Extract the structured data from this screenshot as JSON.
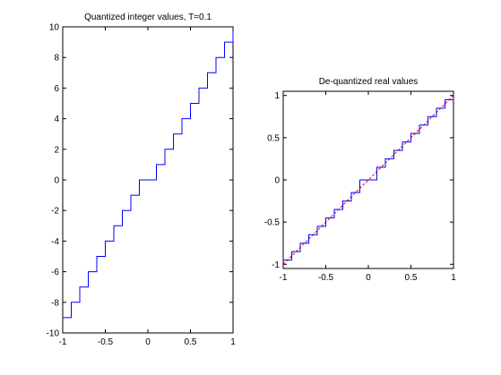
{
  "chart_data": [
    {
      "type": "line",
      "title": "Quantized integer values, T=0.1",
      "xlabel": "",
      "ylabel": "",
      "xlim": [
        -1,
        1
      ],
      "ylim": [
        -10,
        10
      ],
      "grid": false,
      "x_ticks": [
        -1,
        -0.5,
        0,
        0.5,
        1
      ],
      "x_tick_labels": [
        "-1",
        "-0.5",
        "0",
        "0.5",
        "1"
      ],
      "y_ticks": [
        -10,
        -8,
        -6,
        -4,
        -2,
        0,
        2,
        4,
        6,
        8,
        10
      ],
      "y_tick_labels": [
        "-10",
        "-8",
        "-6",
        "-4",
        "-2",
        "0",
        "2",
        "4",
        "6",
        "8",
        "10"
      ],
      "series": [
        {
          "color": "#0000ff",
          "step": "post",
          "x": [
            -1,
            -0.9,
            -0.8,
            -0.7,
            -0.6,
            -0.5,
            -0.4,
            -0.3,
            -0.2,
            -0.1,
            0.1,
            0.2,
            0.3,
            0.4,
            0.5,
            0.6,
            0.7,
            0.8,
            0.9,
            1
          ],
          "y": [
            -9,
            -8,
            -7,
            -6,
            -5,
            -4,
            -3,
            -2,
            -1,
            0,
            1,
            2,
            3,
            4,
            5,
            6,
            7,
            8,
            9,
            10
          ]
        }
      ]
    },
    {
      "type": "line",
      "title": "De-quantized real values",
      "xlabel": "",
      "ylabel": "",
      "xlim": [
        -1,
        1
      ],
      "ylim": [
        -1.05,
        1.05
      ],
      "grid": false,
      "x_ticks": [
        -1,
        -0.5,
        0,
        0.5,
        1
      ],
      "x_tick_labels": [
        "-1",
        "-0.5",
        "0",
        "0.5",
        "1"
      ],
      "y_ticks": [
        -1,
        -0.5,
        0,
        0.5,
        1
      ],
      "y_tick_labels": [
        "-1",
        "-0.5",
        "0",
        "0.5",
        "1"
      ],
      "series": [
        {
          "color": "#ff0000",
          "style": "dashed",
          "x": [
            -1,
            1
          ],
          "y": [
            -1,
            1
          ]
        },
        {
          "color": "#0000ff",
          "step": "post",
          "x": [
            -1,
            -0.9,
            -0.8,
            -0.7,
            -0.6,
            -0.5,
            -0.4,
            -0.3,
            -0.2,
            -0.1,
            0.1,
            0.2,
            0.3,
            0.4,
            0.5,
            0.6,
            0.7,
            0.8,
            0.9,
            1
          ],
          "y": [
            -0.95,
            -0.85,
            -0.75,
            -0.65,
            -0.55,
            -0.45,
            -0.35,
            -0.25,
            -0.15,
            0,
            0.15,
            0.25,
            0.35,
            0.45,
            0.55,
            0.65,
            0.75,
            0.85,
            0.95,
            1.05
          ]
        }
      ]
    }
  ]
}
